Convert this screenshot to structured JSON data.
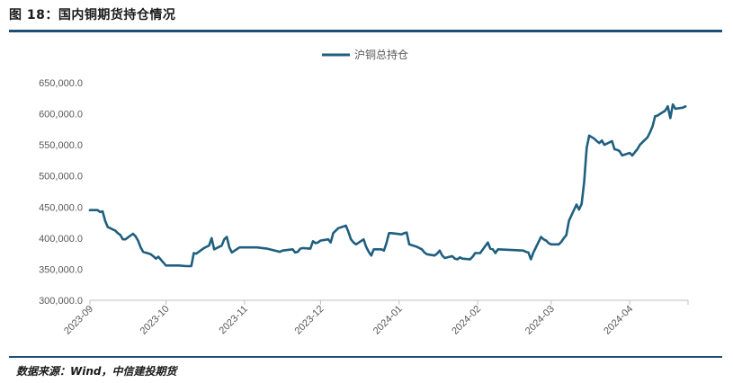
{
  "figure": {
    "title": "图 18：国内铜期货持仓情况",
    "source": "数据来源：Wind，中信建投期货"
  },
  "chart_data": {
    "type": "line",
    "title": "",
    "xlabel": "",
    "ylabel": "",
    "ylim": [
      300000,
      650000
    ],
    "y_ticks": [
      300000,
      350000,
      400000,
      450000,
      500000,
      550000,
      600000,
      650000
    ],
    "y_tick_labels": [
      "300,000.0",
      "350,000.0",
      "400,000.0",
      "450,000.0",
      "500,000.0",
      "550,000.0",
      "600,000.0",
      "650,000.0"
    ],
    "x_tick_labels": [
      "2023-09",
      "2023-10",
      "2023-11",
      "2023-12",
      "2024-01",
      "2024-02",
      "2024-03",
      "2024-04"
    ],
    "x_range": [
      "2023-09-01",
      "2024-04-24"
    ],
    "legend_position": "top-center",
    "grid": false,
    "series": [
      {
        "name": "沪铜总持仓",
        "color": "#1f5f7f",
        "points": [
          [
            "2023-09-01",
            445000
          ],
          [
            "2023-09-04",
            445000
          ],
          [
            "2023-09-05",
            442000
          ],
          [
            "2023-09-06",
            443000
          ],
          [
            "2023-09-07",
            428000
          ],
          [
            "2023-09-08",
            418000
          ],
          [
            "2023-09-11",
            412000
          ],
          [
            "2023-09-12",
            408000
          ],
          [
            "2023-09-13",
            405000
          ],
          [
            "2023-09-14",
            398000
          ],
          [
            "2023-09-15",
            398000
          ],
          [
            "2023-09-18",
            407000
          ],
          [
            "2023-09-19",
            403000
          ],
          [
            "2023-09-20",
            396000
          ],
          [
            "2023-09-21",
            385000
          ],
          [
            "2023-09-22",
            378000
          ],
          [
            "2023-09-25",
            374000
          ],
          [
            "2023-09-26",
            371000
          ],
          [
            "2023-09-27",
            367000
          ],
          [
            "2023-09-28",
            370000
          ],
          [
            "2023-10-01",
            356000
          ],
          [
            "2023-10-06",
            356000
          ],
          [
            "2023-10-09",
            355000
          ],
          [
            "2023-10-11",
            355000
          ],
          [
            "2023-10-12",
            376000
          ],
          [
            "2023-10-13",
            375000
          ],
          [
            "2023-10-16",
            384000
          ],
          [
            "2023-10-17",
            386000
          ],
          [
            "2023-10-18",
            388000
          ],
          [
            "2023-10-19",
            400000
          ],
          [
            "2023-10-20",
            382000
          ],
          [
            "2023-10-23",
            388000
          ],
          [
            "2023-10-24",
            398000
          ],
          [
            "2023-10-25",
            402000
          ],
          [
            "2023-10-26",
            385000
          ],
          [
            "2023-10-27",
            377000
          ],
          [
            "2023-10-30",
            385000
          ],
          [
            "2023-11-01",
            385000
          ],
          [
            "2023-11-03",
            385000
          ],
          [
            "2023-11-06",
            385000
          ],
          [
            "2023-11-08",
            384000
          ],
          [
            "2023-11-10",
            383000
          ],
          [
            "2023-11-13",
            380000
          ],
          [
            "2023-11-15",
            378000
          ],
          [
            "2023-11-16",
            380000
          ],
          [
            "2023-11-20",
            382000
          ],
          [
            "2023-11-21",
            377000
          ],
          [
            "2023-11-22",
            378000
          ],
          [
            "2023-11-23",
            383000
          ],
          [
            "2023-11-24",
            384000
          ],
          [
            "2023-11-27",
            383000
          ],
          [
            "2023-11-28",
            395000
          ],
          [
            "2023-11-29",
            392000
          ],
          [
            "2023-11-30",
            393000
          ],
          [
            "2023-12-01",
            396000
          ],
          [
            "2023-12-04",
            398000
          ],
          [
            "2023-12-05",
            393000
          ],
          [
            "2023-12-06",
            408000
          ],
          [
            "2023-12-07",
            412000
          ],
          [
            "2023-12-08",
            416000
          ],
          [
            "2023-12-11",
            420000
          ],
          [
            "2023-12-12",
            410000
          ],
          [
            "2023-12-13",
            398000
          ],
          [
            "2023-12-14",
            393000
          ],
          [
            "2023-12-15",
            390000
          ],
          [
            "2023-12-18",
            398000
          ],
          [
            "2023-12-19",
            386000
          ],
          [
            "2023-12-20",
            378000
          ],
          [
            "2023-12-21",
            372000
          ],
          [
            "2023-12-22",
            382000
          ],
          [
            "2023-12-25",
            382000
          ],
          [
            "2023-12-26",
            380000
          ],
          [
            "2023-12-27",
            392000
          ],
          [
            "2023-12-28",
            408000
          ],
          [
            "2023-12-29",
            408000
          ],
          [
            "2024-01-02",
            406000
          ],
          [
            "2024-01-03",
            408000
          ],
          [
            "2024-01-04",
            409000
          ],
          [
            "2024-01-05",
            390000
          ],
          [
            "2024-01-08",
            386000
          ],
          [
            "2024-01-09",
            384000
          ],
          [
            "2024-01-10",
            382000
          ],
          [
            "2024-01-11",
            377000
          ],
          [
            "2024-01-12",
            374000
          ],
          [
            "2024-01-15",
            372000
          ],
          [
            "2024-01-16",
            375000
          ],
          [
            "2024-01-17",
            380000
          ],
          [
            "2024-01-18",
            372000
          ],
          [
            "2024-01-19",
            368000
          ],
          [
            "2024-01-22",
            371000
          ],
          [
            "2024-01-23",
            367000
          ],
          [
            "2024-01-24",
            366000
          ],
          [
            "2024-01-25",
            369000
          ],
          [
            "2024-01-26",
            367000
          ],
          [
            "2024-01-29",
            366000
          ],
          [
            "2024-01-30",
            370000
          ],
          [
            "2024-01-31",
            376000
          ],
          [
            "2024-02-01",
            376000
          ],
          [
            "2024-02-02",
            376000
          ],
          [
            "2024-02-05",
            393000
          ],
          [
            "2024-02-06",
            383000
          ],
          [
            "2024-02-07",
            382000
          ],
          [
            "2024-02-08",
            376000
          ],
          [
            "2024-02-09",
            382000
          ],
          [
            "2024-02-19",
            380000
          ],
          [
            "2024-02-20",
            378000
          ],
          [
            "2024-02-21",
            377000
          ],
          [
            "2024-02-22",
            366000
          ],
          [
            "2024-02-23",
            377000
          ],
          [
            "2024-02-26",
            402000
          ],
          [
            "2024-02-27",
            398000
          ],
          [
            "2024-02-28",
            396000
          ],
          [
            "2024-02-29",
            392000
          ],
          [
            "2024-03-01",
            390000
          ],
          [
            "2024-03-04",
            390000
          ],
          [
            "2024-03-05",
            394000
          ],
          [
            "2024-03-06",
            400000
          ],
          [
            "2024-03-07",
            405000
          ],
          [
            "2024-03-08",
            428000
          ],
          [
            "2024-03-11",
            454000
          ],
          [
            "2024-03-12",
            446000
          ],
          [
            "2024-03-13",
            455000
          ],
          [
            "2024-03-14",
            490000
          ],
          [
            "2024-03-15",
            545000
          ],
          [
            "2024-03-16",
            565000
          ],
          [
            "2024-03-18",
            560000
          ],
          [
            "2024-03-19",
            556000
          ],
          [
            "2024-03-20",
            553000
          ],
          [
            "2024-03-21",
            557000
          ],
          [
            "2024-03-22",
            550000
          ],
          [
            "2024-03-25",
            556000
          ],
          [
            "2024-03-26",
            543000
          ],
          [
            "2024-03-27",
            542000
          ],
          [
            "2024-03-28",
            540000
          ],
          [
            "2024-03-29",
            533000
          ],
          [
            "2024-04-01",
            537000
          ],
          [
            "2024-04-02",
            533000
          ],
          [
            "2024-04-03",
            538000
          ],
          [
            "2024-04-04",
            543000
          ],
          [
            "2024-04-05",
            550000
          ],
          [
            "2024-04-08",
            562000
          ],
          [
            "2024-04-09",
            570000
          ],
          [
            "2024-04-10",
            580000
          ],
          [
            "2024-04-11",
            596000
          ],
          [
            "2024-04-12",
            597000
          ],
          [
            "2024-04-13",
            600000
          ],
          [
            "2024-04-15",
            605000
          ],
          [
            "2024-04-16",
            612000
          ],
          [
            "2024-04-17",
            593000
          ],
          [
            "2024-04-18",
            615000
          ],
          [
            "2024-04-19",
            608000
          ],
          [
            "2024-04-22",
            610000
          ],
          [
            "2024-04-23",
            612000
          ]
        ]
      }
    ]
  }
}
